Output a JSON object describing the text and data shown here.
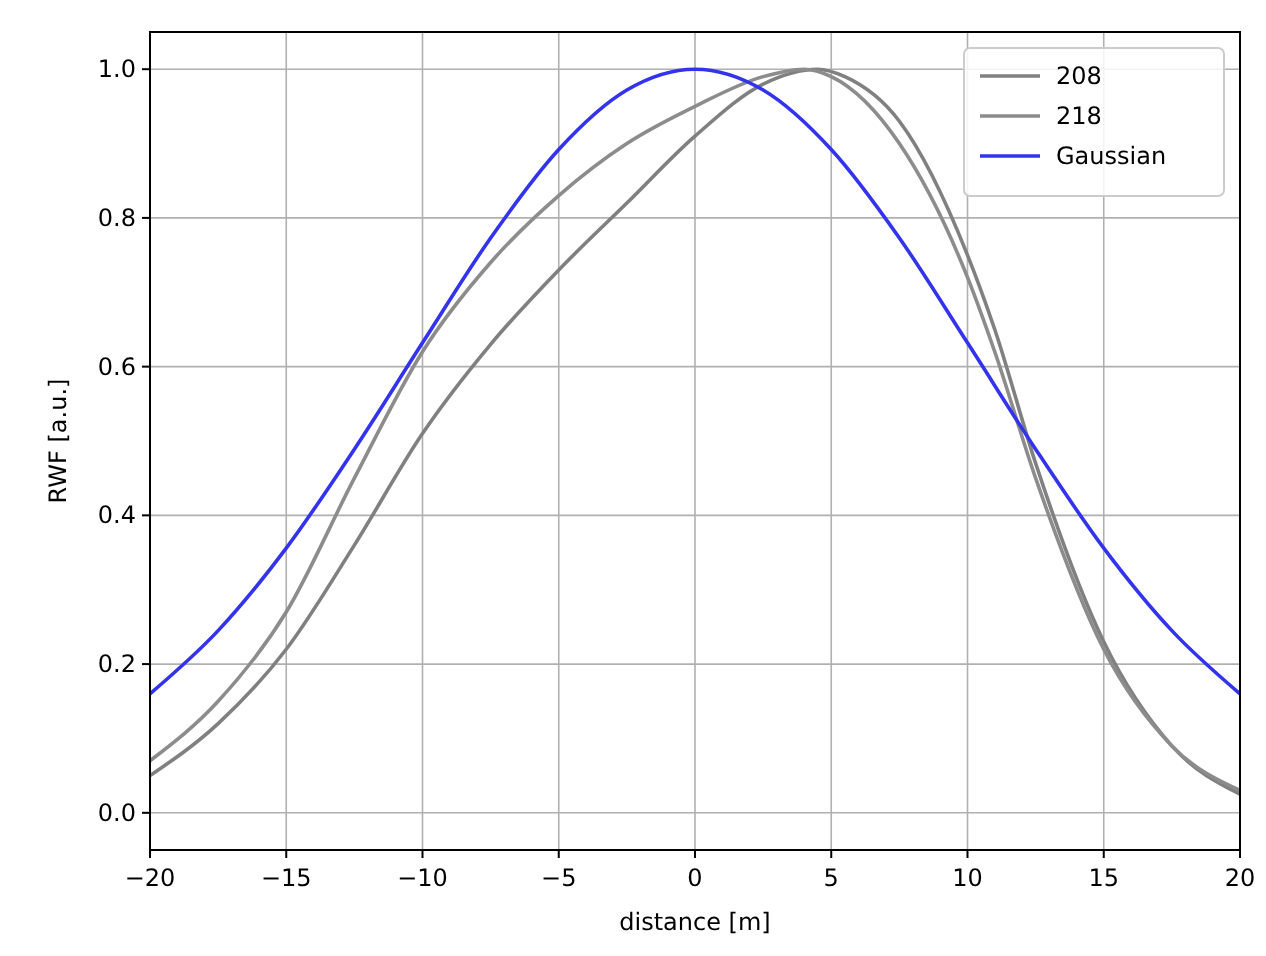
{
  "chart_data": {
    "type": "line",
    "xlabel": "distance [m]",
    "ylabel": "RWF [a.u.]",
    "xlim": [
      -20,
      20
    ],
    "xticks": [
      -20,
      -15,
      -10,
      -5,
      0,
      5,
      10,
      15,
      20
    ],
    "ylim": [
      -0.05,
      1.05
    ],
    "yticks": [
      {
        "value": 0,
        "label": "0.0"
      },
      {
        "value": 0.2,
        "label": "0.2"
      },
      {
        "value": 0.4,
        "label": "0.4"
      },
      {
        "value": 0.6,
        "label": "0.6"
      },
      {
        "value": 0.8,
        "label": "0.8"
      },
      {
        "value": 1,
        "label": "1.0"
      }
    ],
    "grid": true,
    "legend": "top right",
    "marker": "none",
    "line_style": "solid",
    "series": [
      {
        "name": "208",
        "color": "#808080",
        "x": [
          -20,
          -17.5,
          -15,
          -12.5,
          -10,
          -7.5,
          -5,
          -2.5,
          0,
          2.5,
          4.5,
          5.5,
          7.5,
          10,
          11,
          12.5,
          15,
          17.5,
          20
        ],
        "values": [
          0.05,
          0.12,
          0.22,
          0.36,
          0.51,
          0.63,
          0.73,
          0.82,
          0.91,
          0.98,
          1.0,
          0.99,
          0.93,
          0.75,
          0.65,
          0.47,
          0.23,
          0.09,
          0.025
        ]
      },
      {
        "name": "218",
        "color": "#8c8c8c",
        "x": [
          -20,
          -17.5,
          -15,
          -12.5,
          -10,
          -7.5,
          -5,
          -2.5,
          0,
          2.5,
          4,
          5,
          7.5,
          10,
          11,
          12.5,
          15,
          17.5,
          20
        ],
        "values": [
          0.07,
          0.15,
          0.27,
          0.45,
          0.62,
          0.74,
          0.83,
          0.9,
          0.95,
          0.99,
          1.0,
          0.99,
          0.9,
          0.72,
          0.62,
          0.45,
          0.22,
          0.09,
          0.03
        ]
      },
      {
        "name": "Gaussian",
        "color": "#3333ee",
        "x": [
          -20,
          -17.5,
          -15,
          -12.5,
          -10,
          -7.5,
          -5,
          -2.5,
          0,
          2.5,
          5,
          7.5,
          10,
          12.5,
          15,
          17.5,
          20
        ],
        "values": [
          0.16,
          0.245,
          0.356,
          0.489,
          0.632,
          0.773,
          0.892,
          0.972,
          1.0,
          0.972,
          0.892,
          0.773,
          0.632,
          0.489,
          0.356,
          0.245,
          0.16
        ]
      }
    ]
  }
}
